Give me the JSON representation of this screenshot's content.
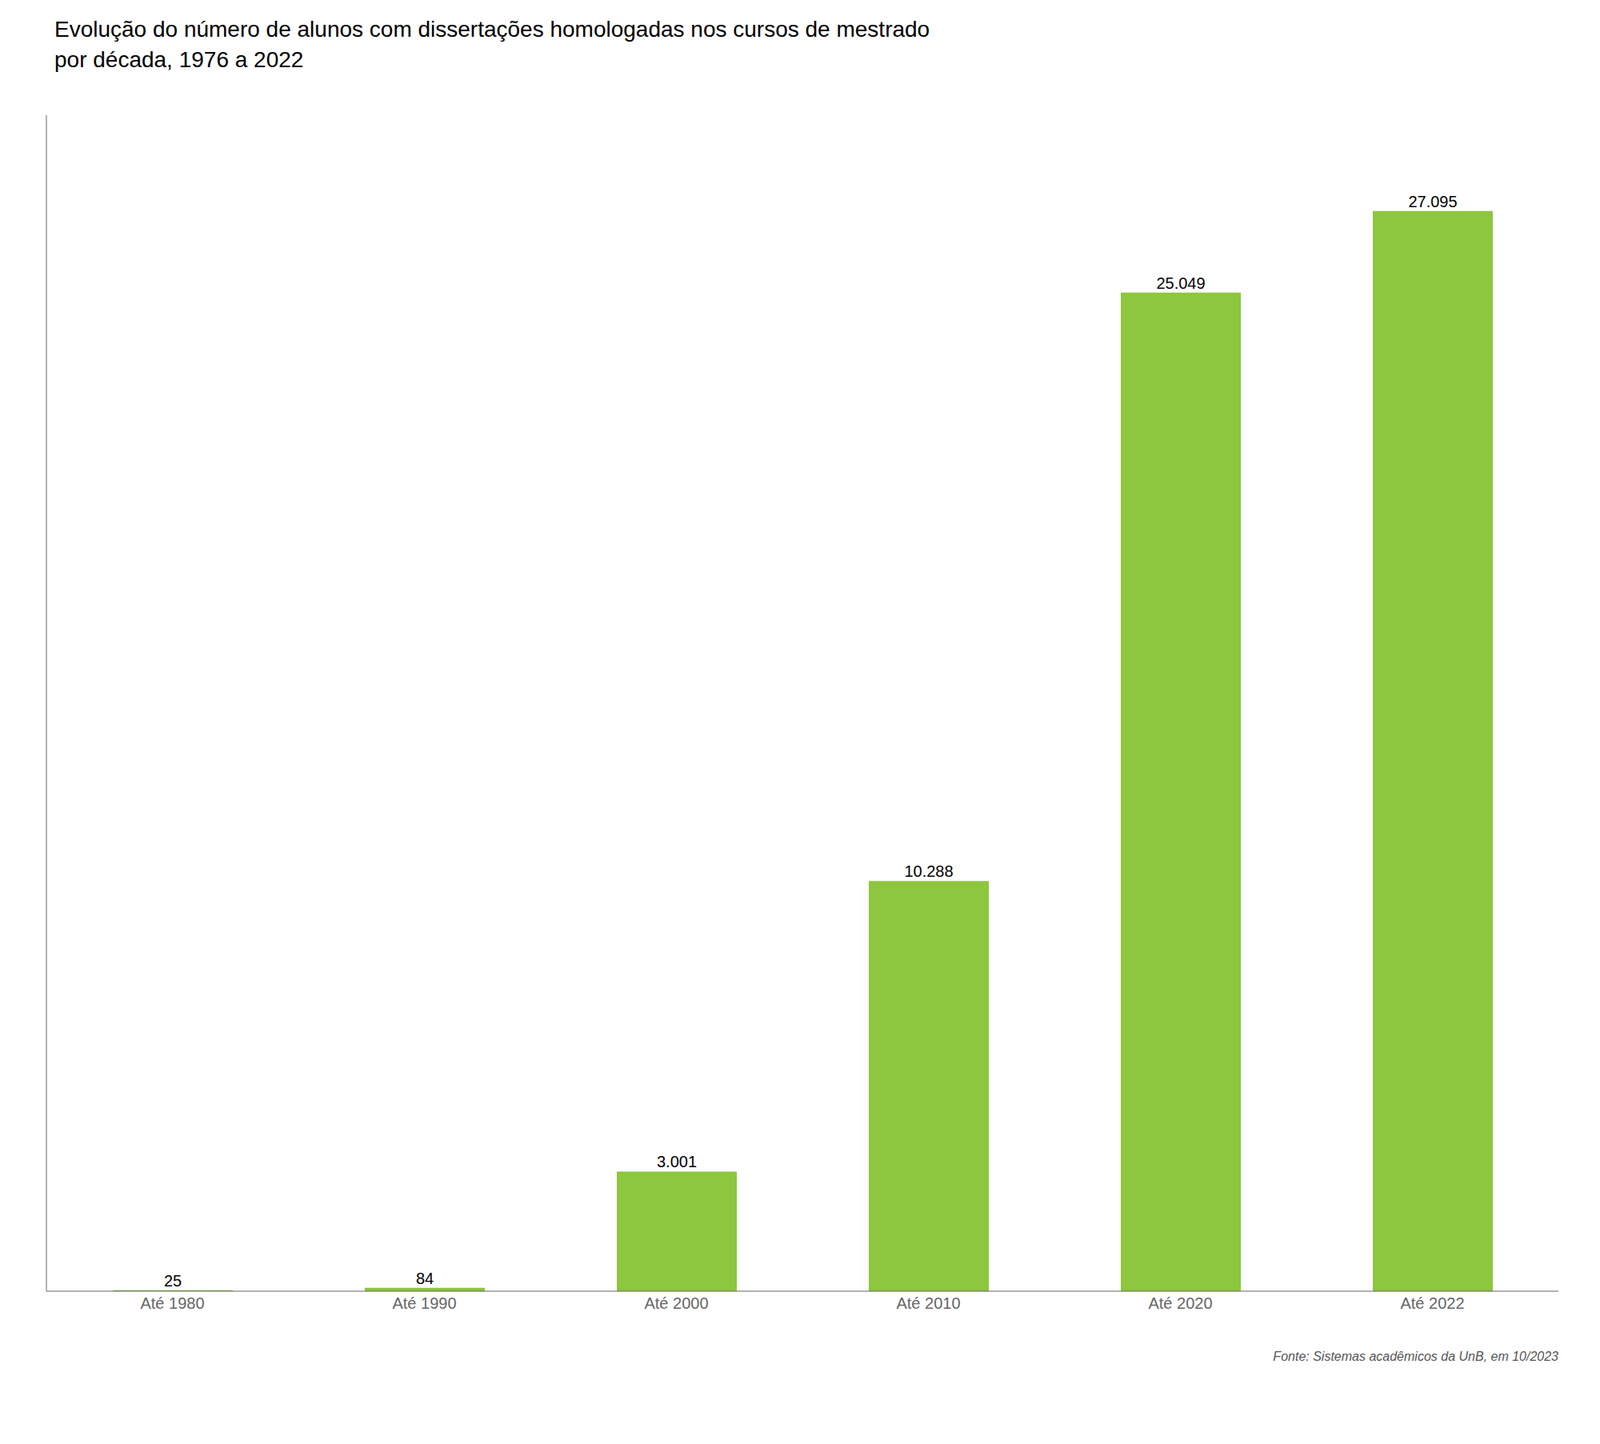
{
  "chart_data": {
    "type": "bar",
    "title": "Evolução do número de alunos com dissertações homologadas nos cursos de mestrado",
    "subtitle": "por década, 1976 a 2022",
    "annotations": [
      "Fonte: Sistemas acadêmicos da UnB, em 10/2023"
    ],
    "categories": [
      "Até 1980",
      "Até 1990",
      "Até 2000",
      "Até 2010",
      "Até 2020",
      "Até 2022"
    ],
    "values": [
      25,
      84,
      3001,
      10288,
      25049,
      27095
    ],
    "value_labels": [
      "25",
      "84",
      "3.001",
      "10.288",
      "25.049",
      "27.095"
    ],
    "data_labels": true,
    "color": "#8dc63f",
    "ylim": [
      0,
      29500
    ],
    "grid": false,
    "tick_labels": "x"
  }
}
